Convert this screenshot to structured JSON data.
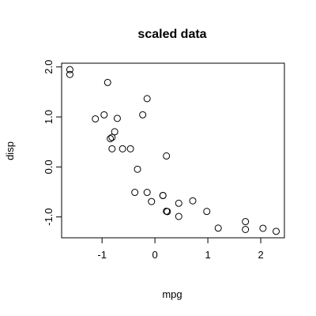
{
  "chart_data": {
    "type": "scatter",
    "title": "scaled data",
    "x_label": "mpg",
    "y_label": "disp",
    "x": [
      0.151,
      0.151,
      0.45,
      0.217,
      -0.231,
      -0.33,
      -0.961,
      0.715,
      0.45,
      -0.148,
      -0.38,
      -0.612,
      -0.463,
      -0.811,
      -1.608,
      -1.608,
      -0.894,
      2.042,
      1.711,
      2.291,
      0.234,
      -0.761,
      -0.811,
      -1.126,
      -0.148,
      1.196,
      0.98,
      1.711,
      -0.712,
      -0.065,
      -0.844,
      0.217
    ],
    "values": [
      -0.571,
      -0.571,
      -0.99,
      0.22,
      1.043,
      -0.046,
      1.043,
      -0.678,
      -0.726,
      -0.509,
      -0.509,
      0.363,
      0.363,
      0.363,
      1.946,
      1.85,
      1.689,
      -1.227,
      -1.251,
      -1.288,
      -0.893,
      0.704,
      0.591,
      0.962,
      1.366,
      -1.224,
      -0.89,
      -1.094,
      0.971,
      -0.692,
      0.567,
      -0.885
    ],
    "color": "#000000",
    "xlim": [
      -1.764,
      2.447
    ],
    "ylim": [
      -1.417,
      2.075
    ],
    "xticks": [
      -1,
      0,
      1,
      2
    ],
    "yticks": [
      {
        "value": -1,
        "label": "-1.0"
      },
      {
        "value": 0,
        "label": "0.0"
      },
      {
        "value": 1,
        "label": "1.0"
      },
      {
        "value": 2,
        "label": "2.0"
      }
    ]
  }
}
